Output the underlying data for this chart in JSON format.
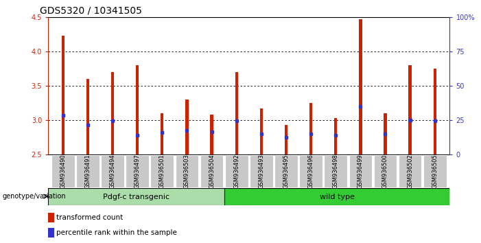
{
  "title": "GDS5320 / 10341505",
  "samples": [
    "GSM936490",
    "GSM936491",
    "GSM936494",
    "GSM936497",
    "GSM936501",
    "GSM936503",
    "GSM936504",
    "GSM936492",
    "GSM936493",
    "GSM936495",
    "GSM936496",
    "GSM936498",
    "GSM936499",
    "GSM936500",
    "GSM936502",
    "GSM936505"
  ],
  "bar_tops": [
    4.23,
    3.6,
    3.7,
    3.8,
    3.1,
    3.3,
    3.08,
    3.7,
    3.17,
    2.93,
    3.25,
    3.03,
    4.47,
    3.1,
    3.8,
    3.75
  ],
  "blue_dots": [
    3.07,
    2.93,
    2.99,
    2.78,
    2.82,
    2.85,
    2.83,
    2.99,
    2.8,
    2.75,
    2.8,
    2.78,
    3.2,
    2.8,
    3.0,
    2.99
  ],
  "bar_color": "#cc2200",
  "dot_color": "#3333cc",
  "ylim": [
    2.5,
    4.5
  ],
  "y2lim": [
    0,
    100
  ],
  "y_ticks": [
    2.5,
    3.0,
    3.5,
    4.0,
    4.5
  ],
  "y2_ticks": [
    0,
    25,
    50,
    75,
    100
  ],
  "y2_labels": [
    "0",
    "25",
    "50",
    "75",
    "100%"
  ],
  "bar_width": 0.12,
  "baseline": 2.5,
  "group1_label": "Pdgf-c transgenic",
  "group2_label": "wild type",
  "group1_count": 7,
  "group2_count": 9,
  "genotype_label": "genotype/variation",
  "legend1": "transformed count",
  "legend2": "percentile rank within the sample",
  "left_axis_color": "#cc2200",
  "y2_color": "#3333cc",
  "tick_bg_color": "#c8c8c8",
  "group1_bg": "#aaddaa",
  "group2_bg": "#33cc33",
  "grid_color": "#000000",
  "title_fontsize": 10,
  "tick_fontsize": 7,
  "label_fontsize": 8,
  "sample_fontsize": 6
}
